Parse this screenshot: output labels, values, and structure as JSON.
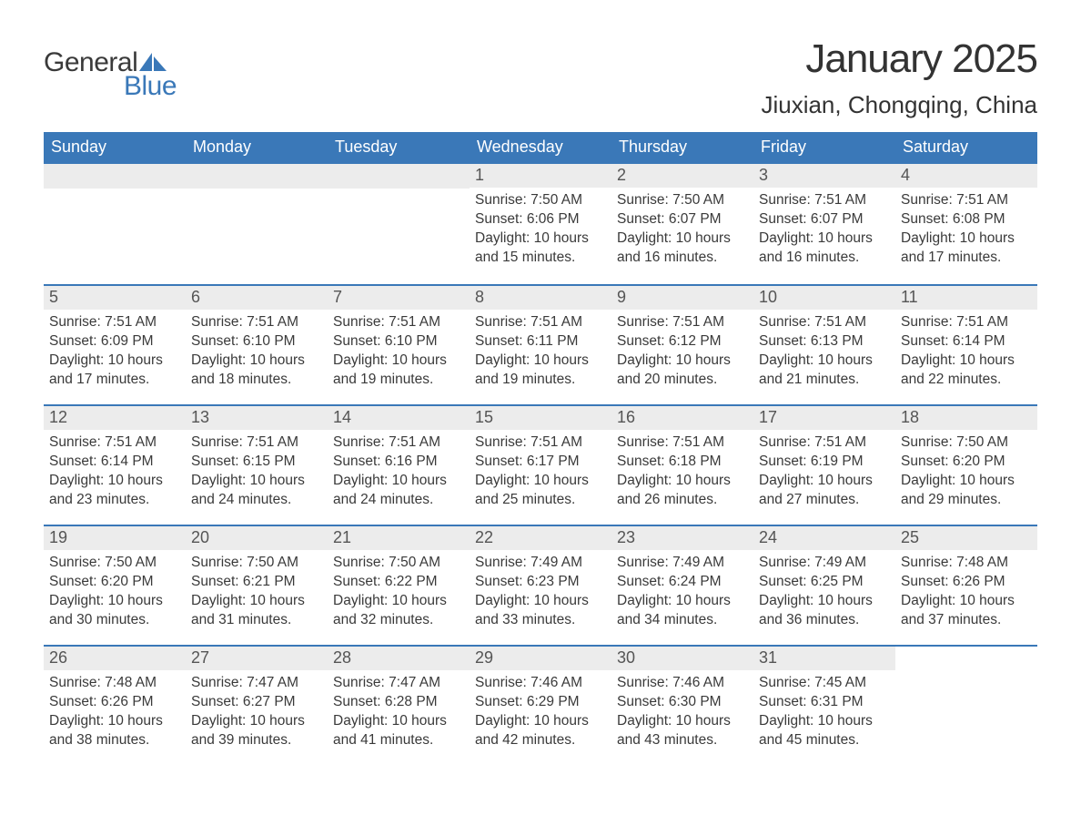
{
  "logo": {
    "word1": "General",
    "word2": "Blue",
    "text_color": "#3a3a3a",
    "accent_color": "#3a78b8"
  },
  "header": {
    "title": "January 2025",
    "location": "Jiuxian, Chongqing, China"
  },
  "calendar": {
    "header_bg": "#3a78b8",
    "header_fg": "#ffffff",
    "daynum_bg": "#ececec",
    "rule_color": "#3a78b8",
    "weekdays": [
      "Sunday",
      "Monday",
      "Tuesday",
      "Wednesday",
      "Thursday",
      "Friday",
      "Saturday"
    ],
    "weeks": [
      [
        null,
        null,
        null,
        {
          "n": "1",
          "sunrise": "Sunrise: 7:50 AM",
          "sunset": "Sunset: 6:06 PM",
          "daylight": "Daylight: 10 hours and 15 minutes."
        },
        {
          "n": "2",
          "sunrise": "Sunrise: 7:50 AM",
          "sunset": "Sunset: 6:07 PM",
          "daylight": "Daylight: 10 hours and 16 minutes."
        },
        {
          "n": "3",
          "sunrise": "Sunrise: 7:51 AM",
          "sunset": "Sunset: 6:07 PM",
          "daylight": "Daylight: 10 hours and 16 minutes."
        },
        {
          "n": "4",
          "sunrise": "Sunrise: 7:51 AM",
          "sunset": "Sunset: 6:08 PM",
          "daylight": "Daylight: 10 hours and 17 minutes."
        }
      ],
      [
        {
          "n": "5",
          "sunrise": "Sunrise: 7:51 AM",
          "sunset": "Sunset: 6:09 PM",
          "daylight": "Daylight: 10 hours and 17 minutes."
        },
        {
          "n": "6",
          "sunrise": "Sunrise: 7:51 AM",
          "sunset": "Sunset: 6:10 PM",
          "daylight": "Daylight: 10 hours and 18 minutes."
        },
        {
          "n": "7",
          "sunrise": "Sunrise: 7:51 AM",
          "sunset": "Sunset: 6:10 PM",
          "daylight": "Daylight: 10 hours and 19 minutes."
        },
        {
          "n": "8",
          "sunrise": "Sunrise: 7:51 AM",
          "sunset": "Sunset: 6:11 PM",
          "daylight": "Daylight: 10 hours and 19 minutes."
        },
        {
          "n": "9",
          "sunrise": "Sunrise: 7:51 AM",
          "sunset": "Sunset: 6:12 PM",
          "daylight": "Daylight: 10 hours and 20 minutes."
        },
        {
          "n": "10",
          "sunrise": "Sunrise: 7:51 AM",
          "sunset": "Sunset: 6:13 PM",
          "daylight": "Daylight: 10 hours and 21 minutes."
        },
        {
          "n": "11",
          "sunrise": "Sunrise: 7:51 AM",
          "sunset": "Sunset: 6:14 PM",
          "daylight": "Daylight: 10 hours and 22 minutes."
        }
      ],
      [
        {
          "n": "12",
          "sunrise": "Sunrise: 7:51 AM",
          "sunset": "Sunset: 6:14 PM",
          "daylight": "Daylight: 10 hours and 23 minutes."
        },
        {
          "n": "13",
          "sunrise": "Sunrise: 7:51 AM",
          "sunset": "Sunset: 6:15 PM",
          "daylight": "Daylight: 10 hours and 24 minutes."
        },
        {
          "n": "14",
          "sunrise": "Sunrise: 7:51 AM",
          "sunset": "Sunset: 6:16 PM",
          "daylight": "Daylight: 10 hours and 24 minutes."
        },
        {
          "n": "15",
          "sunrise": "Sunrise: 7:51 AM",
          "sunset": "Sunset: 6:17 PM",
          "daylight": "Daylight: 10 hours and 25 minutes."
        },
        {
          "n": "16",
          "sunrise": "Sunrise: 7:51 AM",
          "sunset": "Sunset: 6:18 PM",
          "daylight": "Daylight: 10 hours and 26 minutes."
        },
        {
          "n": "17",
          "sunrise": "Sunrise: 7:51 AM",
          "sunset": "Sunset: 6:19 PM",
          "daylight": "Daylight: 10 hours and 27 minutes."
        },
        {
          "n": "18",
          "sunrise": "Sunrise: 7:50 AM",
          "sunset": "Sunset: 6:20 PM",
          "daylight": "Daylight: 10 hours and 29 minutes."
        }
      ],
      [
        {
          "n": "19",
          "sunrise": "Sunrise: 7:50 AM",
          "sunset": "Sunset: 6:20 PM",
          "daylight": "Daylight: 10 hours and 30 minutes."
        },
        {
          "n": "20",
          "sunrise": "Sunrise: 7:50 AM",
          "sunset": "Sunset: 6:21 PM",
          "daylight": "Daylight: 10 hours and 31 minutes."
        },
        {
          "n": "21",
          "sunrise": "Sunrise: 7:50 AM",
          "sunset": "Sunset: 6:22 PM",
          "daylight": "Daylight: 10 hours and 32 minutes."
        },
        {
          "n": "22",
          "sunrise": "Sunrise: 7:49 AM",
          "sunset": "Sunset: 6:23 PM",
          "daylight": "Daylight: 10 hours and 33 minutes."
        },
        {
          "n": "23",
          "sunrise": "Sunrise: 7:49 AM",
          "sunset": "Sunset: 6:24 PM",
          "daylight": "Daylight: 10 hours and 34 minutes."
        },
        {
          "n": "24",
          "sunrise": "Sunrise: 7:49 AM",
          "sunset": "Sunset: 6:25 PM",
          "daylight": "Daylight: 10 hours and 36 minutes."
        },
        {
          "n": "25",
          "sunrise": "Sunrise: 7:48 AM",
          "sunset": "Sunset: 6:26 PM",
          "daylight": "Daylight: 10 hours and 37 minutes."
        }
      ],
      [
        {
          "n": "26",
          "sunrise": "Sunrise: 7:48 AM",
          "sunset": "Sunset: 6:26 PM",
          "daylight": "Daylight: 10 hours and 38 minutes."
        },
        {
          "n": "27",
          "sunrise": "Sunrise: 7:47 AM",
          "sunset": "Sunset: 6:27 PM",
          "daylight": "Daylight: 10 hours and 39 minutes."
        },
        {
          "n": "28",
          "sunrise": "Sunrise: 7:47 AM",
          "sunset": "Sunset: 6:28 PM",
          "daylight": "Daylight: 10 hours and 41 minutes."
        },
        {
          "n": "29",
          "sunrise": "Sunrise: 7:46 AM",
          "sunset": "Sunset: 6:29 PM",
          "daylight": "Daylight: 10 hours and 42 minutes."
        },
        {
          "n": "30",
          "sunrise": "Sunrise: 7:46 AM",
          "sunset": "Sunset: 6:30 PM",
          "daylight": "Daylight: 10 hours and 43 minutes."
        },
        {
          "n": "31",
          "sunrise": "Sunrise: 7:45 AM",
          "sunset": "Sunset: 6:31 PM",
          "daylight": "Daylight: 10 hours and 45 minutes."
        },
        null
      ]
    ]
  }
}
